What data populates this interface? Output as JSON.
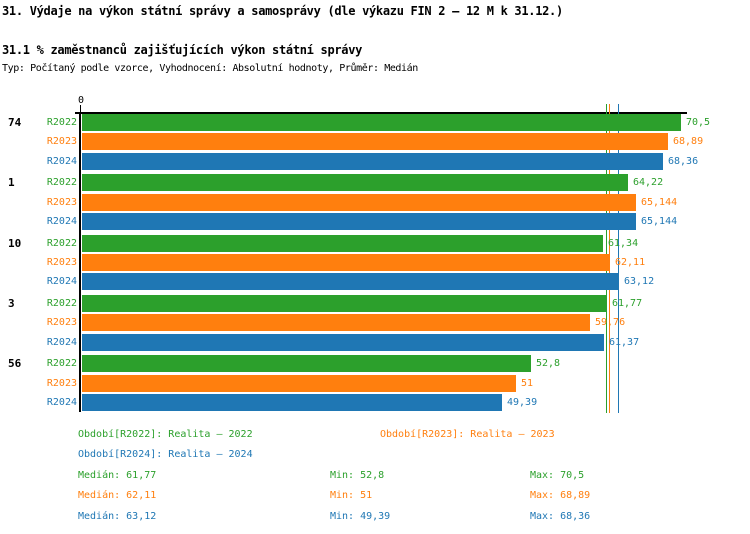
{
  "title": "31. Výdaje na výkon státní správy a samosprávy (dle výkazu FIN 2 – 12 M k 31.12.)",
  "subtitle": "31.1 % zaměstnanců zajišťujících výkon státní správy",
  "meta": "Typ: Počítaný podle vzorce, Vyhodnocení: Absolutní hodnoty, Průměr: Medián",
  "colors": {
    "r2022": "#2CA02C",
    "r2023": "#FF7F0E",
    "r2024": "#1F77B4",
    "axis": "#000000",
    "background": "#FFFFFF"
  },
  "chart_data": {
    "type": "bar",
    "orientation": "horizontal",
    "title": "31.1 % zaměstnanců zajišťujících výkon státní správy",
    "axis_origin_label": "0",
    "xlim": [
      0,
      71.2
    ],
    "grid": false,
    "categories": [
      "74",
      "1",
      "10",
      "3",
      "56"
    ],
    "series": [
      {
        "name": "R2022",
        "color": "#2CA02C",
        "values": [
          70.5,
          64.22,
          61.34,
          61.77,
          52.8
        ],
        "labels": [
          "70,5",
          "64,22",
          "61,34",
          "61,77",
          "52,8"
        ]
      },
      {
        "name": "R2023",
        "color": "#FF7F0E",
        "values": [
          68.89,
          65.144,
          62.11,
          59.76,
          51
        ],
        "labels": [
          "68,89",
          "65,144",
          "62,11",
          "59,76",
          "51"
        ]
      },
      {
        "name": "R2024",
        "color": "#1F77B4",
        "values": [
          68.36,
          65.144,
          63.12,
          61.37,
          49.39
        ],
        "labels": [
          "68,36",
          "65,144",
          "63,12",
          "61,37",
          "49,39"
        ]
      }
    ],
    "median_lines": [
      {
        "series": "R2022",
        "value": 61.77,
        "color": "#2CA02C"
      },
      {
        "series": "R2023",
        "value": 62.11,
        "color": "#FF7F0E"
      },
      {
        "series": "R2024",
        "value": 63.12,
        "color": "#1F77B4"
      }
    ]
  },
  "legend": [
    {
      "label": "Období[R2022]: Realita – 2022",
      "series": "R2022"
    },
    {
      "label": "Období[R2023]: Realita – 2023",
      "series": "R2023"
    },
    {
      "label": "Období[R2024]: Realita – 2024",
      "series": "R2024"
    }
  ],
  "stats": [
    {
      "median": "Medián: 61,77",
      "min": "Min: 52,8",
      "max": "Max: 70,5"
    },
    {
      "median": "Medián: 62,11",
      "min": "Min: 51",
      "max": "Max: 68,89"
    },
    {
      "median": "Medián: 63,12",
      "min": "Min: 49,39",
      "max": "Max: 68,36"
    }
  ]
}
